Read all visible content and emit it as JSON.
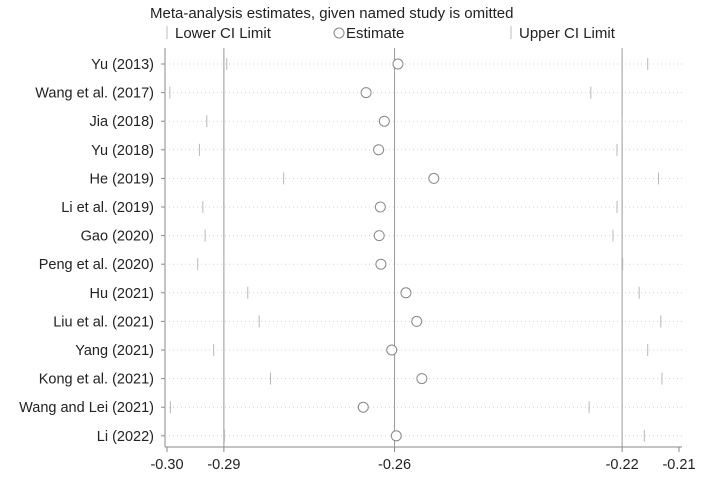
{
  "chart_data": {
    "type": "scatter",
    "title": "Meta-analysis estimates, given named study is omitted",
    "legend": {
      "placement": "top",
      "items": [
        {
          "symbol": "line",
          "label": "Lower CI Limit"
        },
        {
          "symbol": "circle",
          "label": "Estimate"
        },
        {
          "symbol": "line",
          "label": "Upper CI Limit"
        }
      ]
    },
    "x_axis": {
      "range": [
        -0.3,
        -0.21
      ],
      "ticks": [
        {
          "value": -0.3,
          "label": "-0.30"
        },
        {
          "value": -0.29,
          "label": "-0.29"
        },
        {
          "value": -0.26,
          "label": "-0.26"
        },
        {
          "value": -0.22,
          "label": "-0.22"
        },
        {
          "value": -0.21,
          "label": "-0.21"
        }
      ],
      "reference_lines": [
        -0.29,
        -0.26,
        -0.22
      ]
    },
    "studies": [
      {
        "label": "Yu (2013)",
        "lower": -0.2895,
        "estimate": -0.2594,
        "upper": -0.2155
      },
      {
        "label": "Wang et al. (2017)",
        "lower": -0.2995,
        "estimate": -0.265,
        "upper": -0.2255
      },
      {
        "label": "Jia (2018)",
        "lower": -0.293,
        "estimate": -0.2618,
        "upper": -0.22
      },
      {
        "label": "Yu (2018)",
        "lower": -0.2943,
        "estimate": -0.2628,
        "upper": -0.2209
      },
      {
        "label": "He (2019)",
        "lower": -0.2795,
        "estimate": -0.2531,
        "upper": -0.2136
      },
      {
        "label": "Li et al. (2019)",
        "lower": -0.2937,
        "estimate": -0.2625,
        "upper": -0.2209
      },
      {
        "label": "Gao (2020)",
        "lower": -0.2933,
        "estimate": -0.2627,
        "upper": -0.2216
      },
      {
        "label": "Peng et al. (2020)",
        "lower": -0.2946,
        "estimate": -0.2624,
        "upper": -0.2199
      },
      {
        "label": "Hu (2021)",
        "lower": -0.2858,
        "estimate": -0.258,
        "upper": -0.217
      },
      {
        "label": "Liu et al. (2021)",
        "lower": -0.2838,
        "estimate": -0.2561,
        "upper": -0.2132
      },
      {
        "label": "Yang (2021)",
        "lower": -0.2918,
        "estimate": -0.2605,
        "upper": -0.2155
      },
      {
        "label": "Kong et al. (2021)",
        "lower": -0.2818,
        "estimate": -0.2552,
        "upper": -0.213
      },
      {
        "label": "Wang and Lei (2021)",
        "lower": -0.2994,
        "estimate": -0.2655,
        "upper": -0.2258
      },
      {
        "label": "Li (2022)",
        "lower": -0.2899,
        "estimate": -0.2597,
        "upper": -0.2161
      }
    ]
  }
}
